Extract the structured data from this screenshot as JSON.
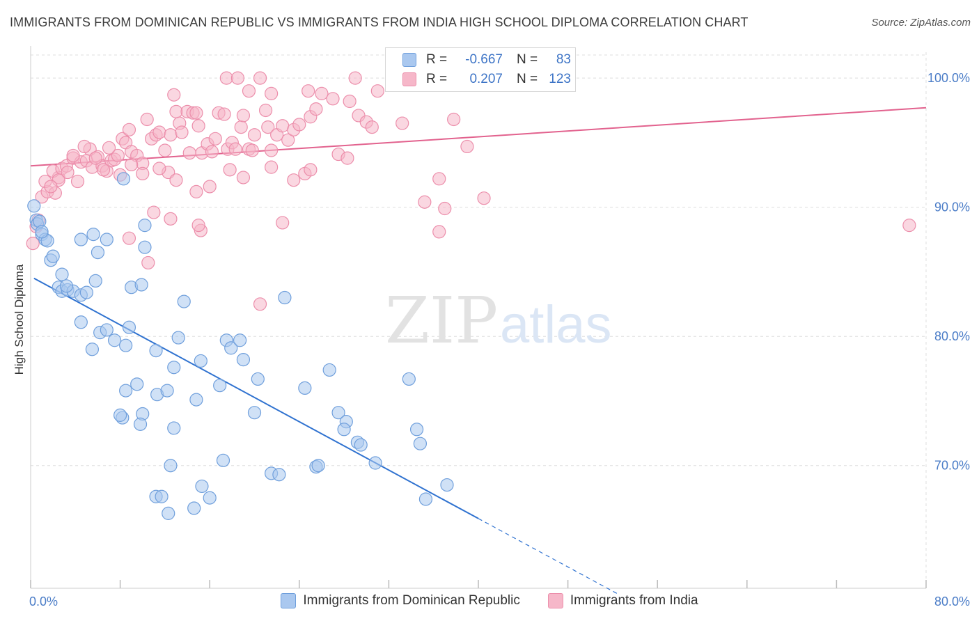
{
  "title": "IMMIGRANTS FROM DOMINICAN REPUBLIC VS IMMIGRANTS FROM INDIA HIGH SCHOOL DIPLOMA CORRELATION CHART",
  "source": "Source: ZipAtlas.com",
  "watermark": {
    "zip": "ZIP",
    "atlas": "atlas"
  },
  "colors": {
    "blue_fill": "#aac8ef",
    "blue_stroke": "#6f9fdc",
    "blue_line": "#2f72d0",
    "pink_fill": "#f6b7c9",
    "pink_stroke": "#ec8eab",
    "pink_line": "#e2628e",
    "tick_text": "#4a7cc7",
    "grid": "#dddddd"
  },
  "stats": [
    {
      "r_label": "R =",
      "r_value": "-0.667",
      "n_label": "N =",
      "n_value": "83",
      "color": "blue"
    },
    {
      "r_label": "R =",
      "r_value": "0.207",
      "n_label": "N =",
      "n_value": "123",
      "color": "pink"
    }
  ],
  "chart_data": {
    "type": "scatter",
    "title": "IMMIGRANTS FROM DOMINICAN REPUBLIC VS IMMIGRANTS FROM INDIA HIGH SCHOOL DIPLOMA CORRELATION CHART",
    "xlabel": "",
    "ylabel": "High School Diploma",
    "xlim": [
      0,
      80
    ],
    "ylim": [
      60.5,
      102
    ],
    "x_ticks": [
      0,
      80
    ],
    "x_tick_labels": [
      "0.0%",
      "80.0%"
    ],
    "x_minor_ticks": [
      8,
      16,
      24,
      32,
      40,
      48,
      56,
      64,
      72
    ],
    "y_ticks": [
      70,
      80,
      90,
      100
    ],
    "y_tick_labels": [
      "70.0%",
      "80.0%",
      "90.0%",
      "100.0%"
    ],
    "grid": true,
    "legend_position": "bottom",
    "series": [
      {
        "name": "Immigrants from Dominican Republic",
        "color": "blue",
        "trend": {
          "x0": 0.3,
          "y0": 84.5,
          "x1": 40,
          "y1": 65.9,
          "dash_to_x": 52.5
        },
        "points": [
          [
            0.3,
            90.1
          ],
          [
            0.5,
            89.0
          ],
          [
            0.6,
            88.7
          ],
          [
            0.8,
            88.9
          ],
          [
            1.0,
            87.9
          ],
          [
            1.3,
            87.5
          ],
          [
            1.5,
            87.4
          ],
          [
            1.8,
            85.9
          ],
          [
            2.0,
            86.2
          ],
          [
            2.8,
            84.8
          ],
          [
            2.5,
            83.8
          ],
          [
            2.8,
            83.5
          ],
          [
            3.3,
            83.6
          ],
          [
            3.8,
            83.5
          ],
          [
            4.5,
            83.2
          ],
          [
            5.0,
            83.4
          ],
          [
            4.5,
            87.5
          ],
          [
            5.6,
            87.9
          ],
          [
            6.8,
            87.5
          ],
          [
            6.0,
            86.5
          ],
          [
            4.5,
            81.1
          ],
          [
            5.5,
            79.0
          ],
          [
            6.2,
            80.3
          ],
          [
            6.8,
            80.5
          ],
          [
            7.5,
            79.7
          ],
          [
            8.5,
            79.3
          ],
          [
            8.8,
            80.7
          ],
          [
            5.8,
            84.3
          ],
          [
            9.0,
            83.8
          ],
          [
            9.9,
            84.0
          ],
          [
            10.2,
            88.6
          ],
          [
            10.2,
            86.9
          ],
          [
            13.7,
            82.7
          ],
          [
            12.8,
            77.6
          ],
          [
            11.2,
            78.9
          ],
          [
            13.2,
            79.9
          ],
          [
            15.2,
            78.1
          ],
          [
            14.8,
            75.1
          ],
          [
            8.5,
            75.8
          ],
          [
            9.5,
            76.3
          ],
          [
            11.3,
            75.5
          ],
          [
            12.2,
            75.8
          ],
          [
            8.2,
            73.7
          ],
          [
            8.0,
            73.9
          ],
          [
            10.0,
            74.0
          ],
          [
            9.8,
            73.2
          ],
          [
            12.8,
            72.9
          ],
          [
            12.5,
            70.0
          ],
          [
            11.2,
            67.6
          ],
          [
            11.7,
            67.6
          ],
          [
            12.3,
            66.3
          ],
          [
            14.6,
            66.7
          ],
          [
            15.3,
            68.4
          ],
          [
            16.0,
            67.5
          ],
          [
            17.2,
            70.4
          ],
          [
            16.9,
            76.2
          ],
          [
            17.5,
            79.7
          ],
          [
            17.9,
            79.1
          ],
          [
            18.7,
            79.7
          ],
          [
            19.0,
            78.2
          ],
          [
            20.0,
            74.1
          ],
          [
            20.3,
            76.7
          ],
          [
            21.5,
            69.4
          ],
          [
            22.2,
            69.3
          ],
          [
            22.7,
            83.0
          ],
          [
            24.5,
            76.0
          ],
          [
            25.5,
            69.9
          ],
          [
            25.7,
            70.0
          ],
          [
            26.7,
            77.4
          ],
          [
            27.5,
            74.1
          ],
          [
            28.2,
            73.4
          ],
          [
            28.0,
            72.8
          ],
          [
            29.2,
            71.8
          ],
          [
            29.5,
            71.6
          ],
          [
            30.8,
            70.2
          ],
          [
            33.8,
            76.7
          ],
          [
            34.5,
            72.8
          ],
          [
            34.8,
            71.7
          ],
          [
            35.3,
            67.4
          ],
          [
            37.2,
            68.5
          ],
          [
            8.3,
            92.2
          ],
          [
            3.2,
            83.9
          ],
          [
            1.0,
            88.1
          ]
        ]
      },
      {
        "name": "Immigrants from India",
        "color": "pink",
        "trend": {
          "x0": 0,
          "y0": 93.2,
          "x1": 80,
          "y1": 97.7
        },
        "points": [
          [
            0.2,
            87.2
          ],
          [
            0.5,
            88.5
          ],
          [
            0.7,
            89.0
          ],
          [
            1.0,
            90.8
          ],
          [
            1.5,
            91.2
          ],
          [
            1.3,
            92.0
          ],
          [
            2.2,
            91.1
          ],
          [
            2.5,
            92.3
          ],
          [
            2.0,
            92.8
          ],
          [
            2.8,
            93.0
          ],
          [
            3.2,
            93.2
          ],
          [
            3.3,
            92.7
          ],
          [
            3.8,
            93.8
          ],
          [
            4.2,
            92.0
          ],
          [
            4.5,
            93.5
          ],
          [
            5.0,
            93.6
          ],
          [
            5.5,
            93.1
          ],
          [
            5.3,
            94.5
          ],
          [
            6.0,
            93.9
          ],
          [
            6.4,
            93.2
          ],
          [
            6.8,
            92.8
          ],
          [
            7.2,
            93.6
          ],
          [
            7.5,
            93.7
          ],
          [
            7.8,
            94.0
          ],
          [
            8.0,
            92.5
          ],
          [
            8.2,
            95.3
          ],
          [
            8.5,
            95.0
          ],
          [
            9.0,
            94.3
          ],
          [
            8.8,
            96.0
          ],
          [
            9.5,
            94.0
          ],
          [
            10.0,
            93.4
          ],
          [
            10.0,
            92.6
          ],
          [
            10.4,
            96.8
          ],
          [
            10.8,
            95.3
          ],
          [
            11.2,
            95.6
          ],
          [
            11.5,
            95.8
          ],
          [
            12.0,
            94.4
          ],
          [
            12.3,
            92.7
          ],
          [
            12.5,
            95.6
          ],
          [
            12.8,
            98.7
          ],
          [
            13.0,
            97.4
          ],
          [
            13.3,
            96.5
          ],
          [
            13.5,
            95.8
          ],
          [
            14.0,
            97.4
          ],
          [
            14.2,
            94.2
          ],
          [
            14.5,
            97.3
          ],
          [
            15.0,
            96.3
          ],
          [
            15.3,
            94.2
          ],
          [
            15.8,
            94.9
          ],
          [
            16.2,
            94.3
          ],
          [
            16.5,
            95.3
          ],
          [
            16.8,
            97.3
          ],
          [
            17.3,
            97.2
          ],
          [
            17.6,
            94.5
          ],
          [
            18.0,
            95.0
          ],
          [
            18.3,
            94.5
          ],
          [
            18.8,
            96.2
          ],
          [
            19.0,
            97.1
          ],
          [
            19.5,
            94.5
          ],
          [
            19.8,
            94.4
          ],
          [
            20.0,
            95.6
          ],
          [
            20.5,
            100.0
          ],
          [
            21.0,
            97.5
          ],
          [
            21.2,
            96.2
          ],
          [
            21.5,
            94.4
          ],
          [
            22.0,
            95.6
          ],
          [
            22.5,
            96.3
          ],
          [
            23.0,
            95.2
          ],
          [
            23.5,
            96.0
          ],
          [
            24.0,
            96.4
          ],
          [
            24.5,
            92.6
          ],
          [
            25.0,
            97.0
          ],
          [
            25.5,
            97.6
          ],
          [
            26.0,
            98.8
          ],
          [
            27.0,
            98.4
          ],
          [
            27.5,
            94.1
          ],
          [
            28.3,
            93.8
          ],
          [
            29.0,
            100.0
          ],
          [
            29.3,
            97.1
          ],
          [
            30.0,
            96.6
          ],
          [
            30.5,
            96.2
          ],
          [
            31.0,
            99.0
          ],
          [
            33.2,
            96.5
          ],
          [
            35.2,
            90.4
          ],
          [
            36.5,
            88.1
          ],
          [
            36.5,
            92.2
          ],
          [
            37.0,
            89.9
          ],
          [
            37.8,
            96.8
          ],
          [
            39.0,
            94.7
          ],
          [
            40.5,
            90.7
          ],
          [
            20.5,
            82.5
          ],
          [
            22.5,
            88.8
          ],
          [
            14.8,
            91.2
          ],
          [
            15.2,
            88.2
          ],
          [
            15.0,
            88.6
          ],
          [
            12.5,
            89.1
          ],
          [
            11.0,
            89.6
          ],
          [
            8.8,
            87.6
          ],
          [
            10.5,
            85.7
          ],
          [
            13.0,
            92.1
          ],
          [
            16.0,
            91.6
          ],
          [
            19.0,
            92.3
          ],
          [
            21.5,
            93.1
          ],
          [
            23.5,
            92.1
          ],
          [
            25.0,
            92.9
          ],
          [
            9.0,
            93.3
          ],
          [
            6.5,
            92.9
          ],
          [
            5.8,
            93.8
          ],
          [
            4.8,
            94.7
          ],
          [
            3.8,
            94.0
          ],
          [
            2.5,
            92.1
          ],
          [
            1.8,
            91.6
          ],
          [
            17.5,
            100.0
          ],
          [
            18.5,
            100.0
          ],
          [
            19.5,
            99.0
          ],
          [
            21.5,
            98.8
          ],
          [
            24.8,
            99.0
          ],
          [
            28.5,
            98.2
          ],
          [
            7.0,
            94.6
          ],
          [
            11.5,
            93.0
          ],
          [
            14.8,
            97.3
          ],
          [
            17.8,
            92.9
          ],
          [
            78.5,
            88.6
          ]
        ]
      }
    ]
  }
}
